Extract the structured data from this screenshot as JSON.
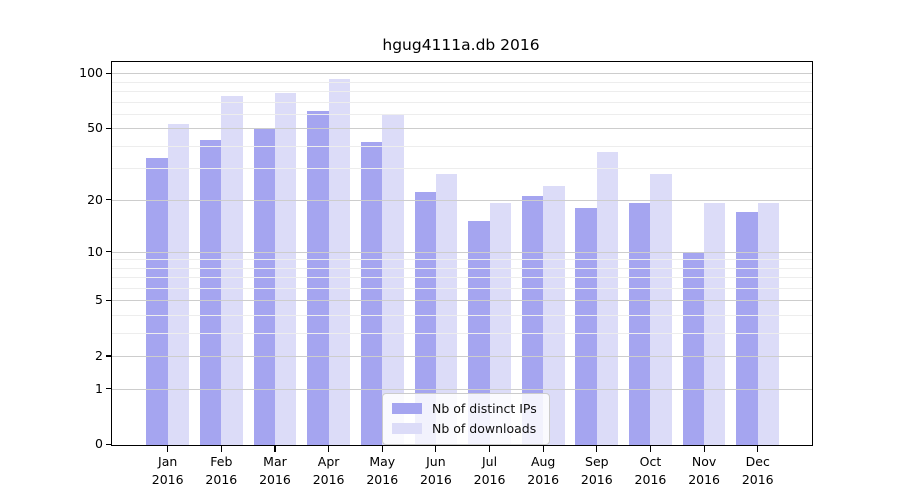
{
  "chart_data": {
    "type": "bar",
    "title": "hgug4111a.db 2016",
    "year": "2016",
    "categories": [
      "Jan",
      "Feb",
      "Mar",
      "Apr",
      "May",
      "Jun",
      "Jul",
      "Aug",
      "Sep",
      "Oct",
      "Nov",
      "Dec"
    ],
    "series": [
      {
        "name": "Nb of distinct IPs",
        "color": "#a5a5f0",
        "values": [
          34,
          43,
          50,
          62,
          42,
          22,
          15,
          21,
          18,
          19,
          10,
          17
        ]
      },
      {
        "name": "Nb of downloads",
        "color": "#dcdcf8",
        "values": [
          53,
          75,
          78,
          93,
          59,
          28,
          19,
          24,
          37,
          28,
          19,
          19
        ]
      }
    ],
    "y_axis": {
      "scale": "log1p",
      "tick_labels": [
        "100",
        "50",
        "20",
        "10",
        "5",
        "2",
        "1",
        "0"
      ],
      "ticks": [
        100,
        50,
        20,
        10,
        5,
        2,
        1,
        0
      ],
      "minor_gridlines": [
        90,
        80,
        70,
        60,
        40,
        30,
        9,
        8,
        7,
        6,
        4,
        3
      ],
      "range": [
        0,
        115
      ]
    },
    "x_axis": {
      "label_format": "month-over-year"
    },
    "grid": "horizontal",
    "legend": {
      "position": "lower center",
      "labels": [
        "Nb of distinct IPs",
        "Nb of downloads"
      ]
    },
    "colors": {
      "ips_bar": "#a5a5f0",
      "downloads_bar": "#dcdcf8",
      "major_grid": "#cdcdcd",
      "minor_grid": "#ededed"
    }
  }
}
